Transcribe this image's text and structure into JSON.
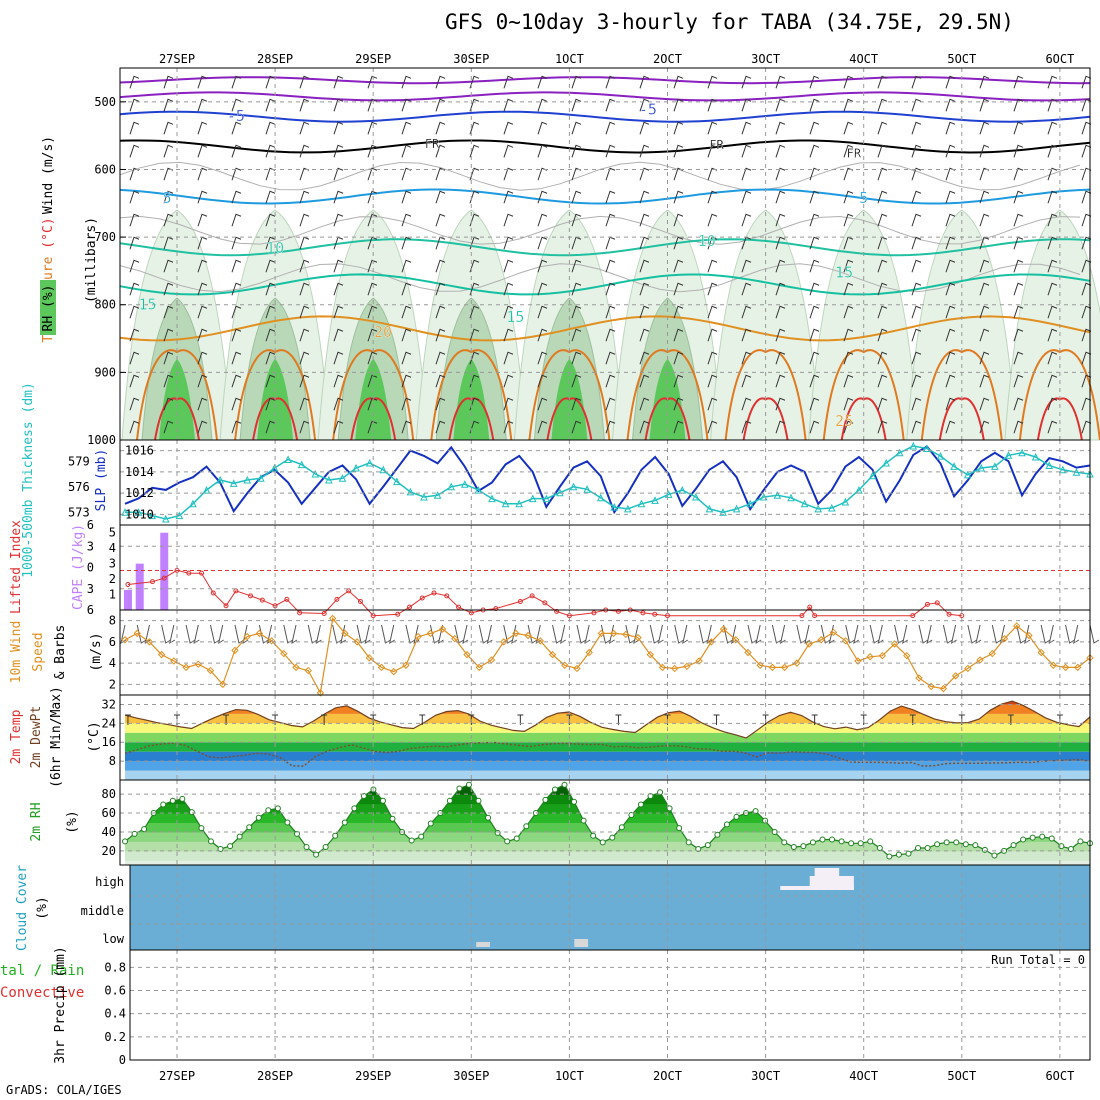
{
  "title": "GFS 0~10day 3-hourly for TABA (34.75E, 29.5N)",
  "footer": "GrADS: COLA/IGES",
  "dates": [
    "27SEP",
    "28SEP",
    "29SEP",
    "30SEP",
    "1OCT",
    "2OCT",
    "3OCT",
    "4OCT",
    "5OCT",
    "6OCT"
  ],
  "colors": {
    "temp_cold": "#1e9be0",
    "temp_mid": "#20c0a0",
    "freeze": "#000000",
    "warm": "#e09020",
    "hot": "#e03030",
    "violet": "#8a20c0",
    "rh_light": "#e6f2e6",
    "rh_mid": "#b8d8b8",
    "rh_dark": "#5cc85c",
    "slp": "#1530c0",
    "thick": "#20c0c0",
    "cape": "#c080ff",
    "li": "#e03030",
    "wind": "#e09020",
    "cloud": "#6aaed6"
  },
  "chart_data": [
    {
      "type": "line",
      "name": "upper-air",
      "ylabels": [
        "Wind (m/s)",
        "Temperature (°C)",
        "RH (%)",
        "(millibars)"
      ],
      "y_axis": {
        "ticks": [
          500,
          600,
          700,
          800,
          900,
          1000
        ],
        "range": [
          450,
          1000
        ],
        "inverted": true
      },
      "contour_labels": [
        {
          "text": "-5",
          "day": 0.6,
          "p": 521
        },
        {
          "text": "-5",
          "day": 4.8,
          "p": 511
        },
        {
          "text": "FR",
          "day": 2.6,
          "p": 561
        },
        {
          "text": "FR",
          "day": 5.5,
          "p": 562
        },
        {
          "text": "FR",
          "day": 6.9,
          "p": 575
        },
        {
          "text": "5",
          "day": -0.1,
          "p": 642
        },
        {
          "text": "5",
          "day": 7.0,
          "p": 642
        },
        {
          "text": "10",
          "day": 1.0,
          "p": 716
        },
        {
          "text": "10",
          "day": 5.4,
          "p": 706
        },
        {
          "text": "15",
          "day": -0.3,
          "p": 800
        },
        {
          "text": "15",
          "day": 3.45,
          "p": 818
        },
        {
          "text": "15",
          "day": 6.8,
          "p": 752
        },
        {
          "text": "20",
          "day": 2.1,
          "p": 840
        },
        {
          "text": "25",
          "day": 6.8,
          "p": 972
        }
      ]
    },
    {
      "type": "line",
      "name": "slp-thickness",
      "left_label": "1000-500mb Thickness (dm)",
      "right_label": "SLP (mb)",
      "thickness_ticks": [
        573,
        576,
        579
      ],
      "slp_ticks": [
        1010,
        1012,
        1014,
        1016
      ],
      "slp": [
        1011,
        1011.5,
        1012.5,
        1012.3,
        1013,
        1013.5,
        1014.5,
        1013,
        1010.3,
        1012,
        1013.5,
        1014.2,
        1013,
        1011,
        1012.5,
        1014,
        1014.6,
        1013.3,
        1011,
        1012.6,
        1014.3,
        1016,
        1015.5,
        1014.8,
        1016.3,
        1014.5,
        1012.2,
        1013,
        1014.7,
        1015.5,
        1014,
        1010.7,
        1012.6,
        1014.4,
        1015,
        1013.6,
        1010.2,
        1012,
        1014.2,
        1015.4,
        1013.8,
        1010.8,
        1012.4,
        1014.2,
        1015,
        1013.5,
        1010.5,
        1012.3,
        1014,
        1014.6,
        1014,
        1011,
        1012.3,
        1014.5,
        1015.4,
        1014.2,
        1011.2,
        1013.2,
        1015.6,
        1016.4,
        1014.8,
        1011.7,
        1013.2,
        1015,
        1015.8,
        1015,
        1011.8,
        1013.8,
        1015.3,
        1015,
        1014.4,
        1014.6
      ],
      "thickness": [
        573,
        573,
        572.6,
        572.2,
        572.6,
        574,
        575.6,
        576.8,
        576.4,
        576.8,
        577,
        578.2,
        579.2,
        578.6,
        577.5,
        576.8,
        577,
        578.2,
        578.8,
        578,
        576.6,
        575.4,
        574.8,
        575,
        576,
        576.3,
        575.6,
        574.6,
        574,
        574,
        574.6,
        574.6,
        575.3,
        576,
        575.7,
        574.7,
        573.6,
        573.4,
        574,
        574.4,
        575.1,
        575.6,
        574.8,
        573.4,
        573,
        573.4,
        574,
        574.8,
        575,
        574.7,
        574,
        573.4,
        573.5,
        574.2,
        575.6,
        577.3,
        578.8,
        580,
        580.8,
        580.5,
        579.6,
        578.4,
        577.4,
        578.2,
        578.4,
        579.7,
        580,
        579.5,
        578.5,
        578,
        577.7,
        577.5
      ]
    },
    {
      "type": "bar",
      "name": "cape-li",
      "left_label": "Lifted Index",
      "right_label": "CAPE (J/kg)",
      "cape_ticks": [
        1,
        2,
        3,
        4,
        5
      ],
      "li_ticks": [
        -6,
        -3,
        0,
        3,
        6
      ],
      "cape": [
        {
          "day": -0.5,
          "v": 1.3
        },
        {
          "day": -0.38,
          "v": 3.0
        },
        {
          "day": -0.13,
          "v": 5.0
        }
      ],
      "li_points": [
        [
          -0.5,
          2.4
        ],
        [
          -0.25,
          2.0
        ],
        [
          -0.13,
          1.5
        ],
        [
          0,
          0.4
        ],
        [
          0.12,
          0.8
        ],
        [
          0.25,
          0.8
        ],
        [
          0.37,
          3.6
        ],
        [
          0.5,
          5.4
        ],
        [
          0.6,
          3.3
        ],
        [
          0.75,
          4.0
        ],
        [
          0.87,
          4.6
        ],
        [
          1.0,
          5.4
        ],
        [
          1.12,
          4.5
        ],
        [
          1.25,
          6.4
        ],
        [
          1.5,
          6.5
        ],
        [
          1.63,
          4.5
        ],
        [
          1.75,
          3.3
        ],
        [
          1.87,
          4.8
        ],
        [
          2.0,
          6.8
        ],
        [
          2.25,
          6.6
        ],
        [
          2.37,
          5.6
        ],
        [
          2.5,
          4.3
        ],
        [
          2.62,
          3.6
        ],
        [
          2.75,
          4.0
        ],
        [
          2.87,
          5.6
        ],
        [
          3.0,
          6.4
        ],
        [
          3.12,
          6.0
        ],
        [
          3.25,
          5.8
        ],
        [
          3.5,
          4.8
        ],
        [
          3.62,
          4.0
        ],
        [
          3.75,
          5.0
        ],
        [
          3.87,
          6.2
        ],
        [
          4.0,
          6.8
        ],
        [
          4.25,
          6.4
        ],
        [
          4.37,
          6.0
        ],
        [
          4.5,
          6.2
        ],
        [
          4.62,
          6.0
        ],
        [
          4.75,
          6.4
        ],
        [
          4.87,
          6.6
        ],
        [
          5.0,
          6.8
        ],
        [
          6.37,
          6.8
        ],
        [
          6.45,
          5.6
        ],
        [
          6.5,
          6.8
        ],
        [
          7.5,
          6.8
        ],
        [
          7.65,
          5.2
        ],
        [
          7.75,
          5.0
        ],
        [
          7.87,
          6.6
        ],
        [
          8.0,
          6.8
        ]
      ]
    },
    {
      "type": "line",
      "name": "wind10m",
      "left_label": "10m Wind Speed (m/s) & Barbs",
      "ticks": [
        2,
        4,
        6,
        8
      ],
      "speeds": [
        6.2,
        6.8,
        6,
        4.8,
        4.2,
        3.6,
        3.9,
        3.3,
        2.0,
        5.2,
        6.5,
        6.8,
        6.1,
        4.9,
        3.6,
        3.3,
        1.2,
        8.2,
        6.8,
        6,
        4.5,
        3.6,
        3.2,
        3.8,
        6.5,
        6.8,
        7.2,
        6.3,
        4.8,
        3.6,
        4.3,
        6,
        6.8,
        6.6,
        6.1,
        4.8,
        3.8,
        3.5,
        5,
        6.8,
        6.8,
        6.7,
        6.4,
        4.8,
        3.6,
        3.5,
        3.7,
        4.2,
        6,
        7.2,
        6.2,
        5,
        3.8,
        3.6,
        3.6,
        4,
        5.8,
        6.2,
        6.9,
        6.1,
        4.2,
        4.6,
        4.7,
        5.8,
        4.7,
        2.6,
        1.8,
        1.6,
        2.8,
        3.5,
        4.3,
        4.9,
        6.3,
        7.5,
        6.6,
        5,
        3.8,
        3.6,
        3.6,
        4.5
      ]
    },
    {
      "type": "area",
      "name": "temp-dewpoint",
      "left_label": "2m Temp 2m DewPt (6hr Min/Max)",
      "unit": "(°C)",
      "ticks": [
        8,
        16,
        24,
        32
      ],
      "temp": [
        27.5,
        26.3,
        25.3,
        24.2,
        23.4,
        22.5,
        21.8,
        24.1,
        26.3,
        28.2,
        29.8,
        29.5,
        27.8,
        25.5,
        24.3,
        23.1,
        22.5,
        25,
        28,
        30.6,
        31.4,
        29.1,
        26.3,
        24.6,
        23.4,
        22.2,
        21.8,
        24.4,
        27.4,
        29,
        29.4,
        27.9,
        25,
        23.2,
        22.1,
        21,
        20.6,
        23.2,
        26.5,
        28.3,
        28.8,
        27,
        24.4,
        22.3,
        21.4,
        20.6,
        20.1,
        23.4,
        26.6,
        28.5,
        29.2,
        27,
        24.2,
        22.1,
        20.4,
        19.2,
        17.8,
        21.1,
        24.6,
        27.3,
        28.7,
        27.3,
        24.6,
        22.6,
        21.7,
        22.4,
        21.3,
        22.2,
        25.4,
        29.2,
        31.3,
        29.8,
        27.8,
        25.8,
        24.7,
        24.2,
        24.3,
        25.8,
        29.5,
        32.1,
        33.4,
        31.5,
        29,
        26.3,
        24.5,
        23.4,
        22.6,
        26.7
      ],
      "dewpoint": [
        11.3,
        12.8,
        14.4,
        15.2,
        15.6,
        14.8,
        12.3,
        9.9,
        9.3,
        10,
        10.4,
        11.3,
        11,
        9.6,
        6,
        5.9,
        10,
        12.3,
        13.7,
        14.9,
        13.6,
        12.1,
        11.6,
        12.2,
        13.4,
        13.9,
        14.3,
        14,
        14.9,
        15.6,
        15.8,
        15.9,
        15.3,
        14.7,
        14.2,
        14.9,
        15.4,
        15.5,
        15.2,
        15,
        15.1,
        14,
        14.3,
        13.7,
        13.9,
        14.4,
        14.5,
        14.2,
        13.2,
        13.1,
        12.2,
        12.2,
        11.5,
        9.8,
        11.5,
        11.3,
        11.9,
        11.7,
        11.6,
        10.9,
        9.2,
        7.6,
        7.5,
        7.5,
        7.4,
        7.1,
        7.4,
        5.9,
        6.1,
        7,
        7.1,
        7.1,
        7.1,
        7.2,
        7.3,
        7.5,
        7.4,
        7.9,
        8.2,
        8.4,
        8.7,
        7.9
      ]
    },
    {
      "type": "area",
      "name": "rh2m",
      "left_label": "2m RH",
      "unit": "(%)",
      "ticks": [
        20,
        40,
        60,
        80
      ],
      "values": [
        30,
        38,
        43,
        60,
        69,
        73,
        75,
        61,
        44,
        30,
        22,
        25,
        35,
        45,
        55,
        63,
        65,
        50,
        38,
        24,
        16,
        24,
        36,
        50,
        65,
        78,
        85,
        73,
        54,
        40,
        31,
        35,
        49,
        60,
        73,
        86,
        90,
        73,
        55,
        39,
        30,
        33,
        46,
        60,
        74,
        85,
        90,
        72,
        52,
        36,
        29,
        34,
        45,
        58,
        69,
        78,
        82,
        65,
        44,
        29,
        22,
        26,
        37,
        48,
        56,
        60,
        62,
        52,
        40,
        29,
        24,
        25,
        29,
        32,
        32,
        30,
        28,
        28,
        30,
        23,
        14,
        16,
        17,
        23,
        23,
        27,
        29,
        29,
        27,
        26,
        21,
        15,
        20,
        26,
        32,
        34,
        35,
        33,
        25,
        22,
        30,
        28
      ]
    },
    {
      "type": "area",
      "name": "cloud-cover",
      "left_label": "Cloud Cover (%)",
      "levels": [
        "high",
        "middle",
        "low"
      ],
      "high_blocks": [
        {
          "from": 6.15,
          "to": 6.9
        },
        {
          "from": 6.45,
          "to": 6.9
        },
        {
          "from": 6.5,
          "to": 6.75
        }
      ],
      "low_blocks": [
        {
          "from": 3.05,
          "to": 3.19
        },
        {
          "from": 4.05,
          "to": 4.19
        }
      ]
    },
    {
      "type": "line",
      "name": "precip",
      "left_label": "3hr Precip (mm)",
      "legend_left": [
        "tal / Rain",
        "Convective"
      ],
      "ticks": [
        0,
        0.2,
        0.4,
        0.6,
        0.8
      ],
      "run_total": "Run Total = 0"
    }
  ]
}
